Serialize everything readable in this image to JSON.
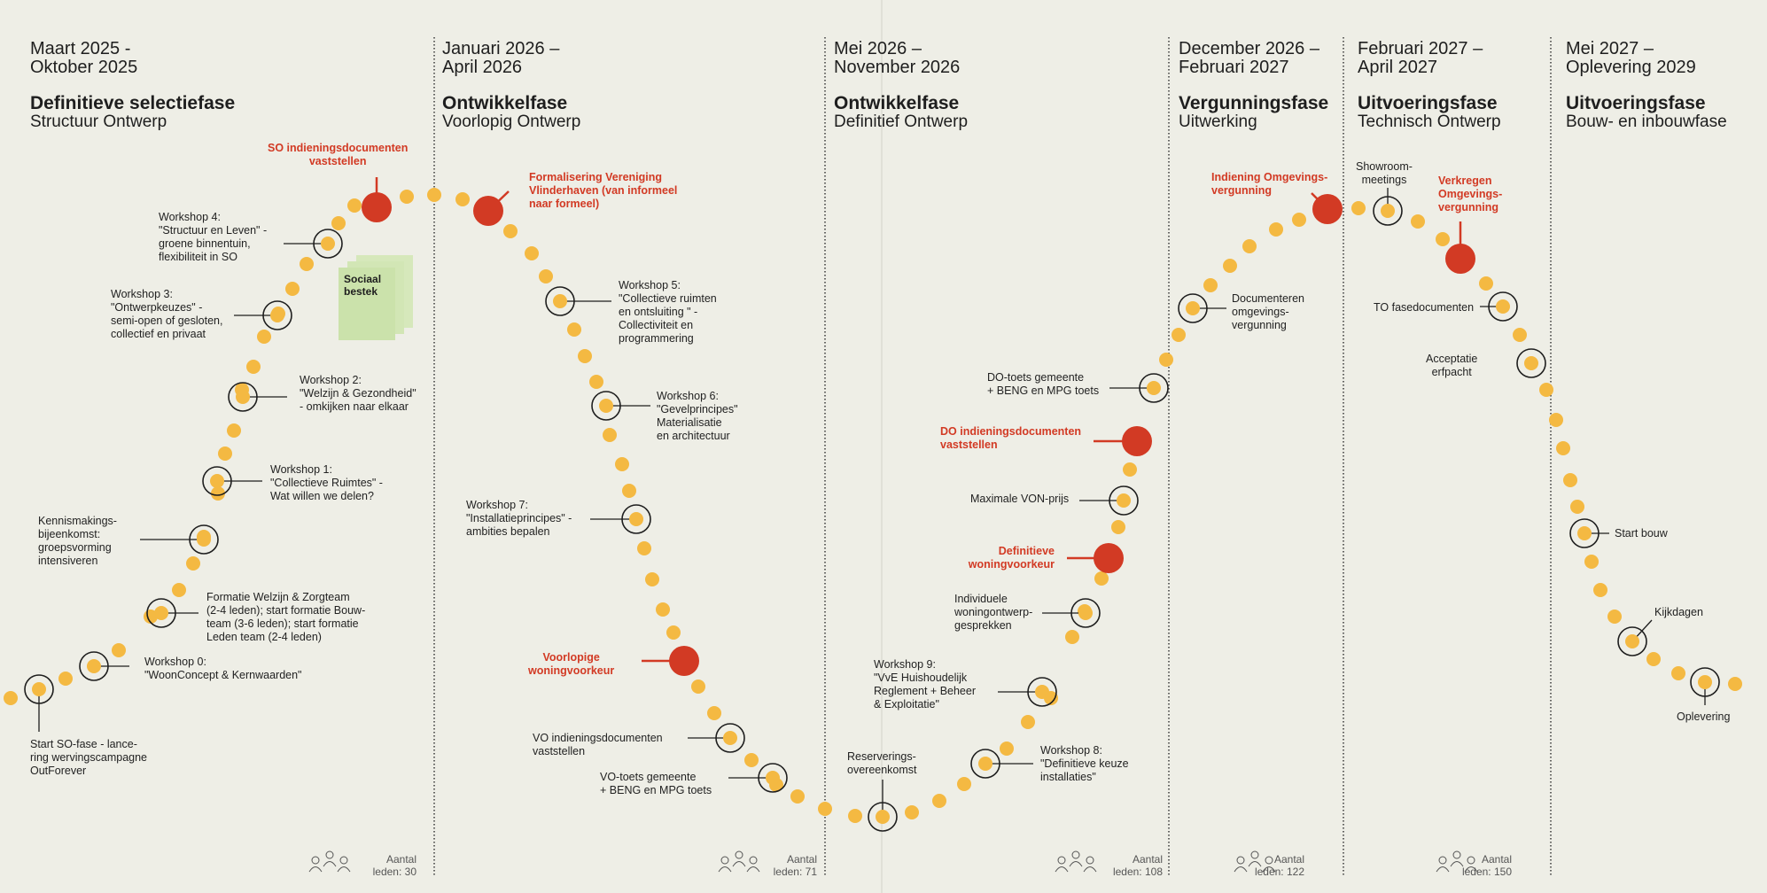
{
  "phases": [
    {
      "dates": "Maart 2025 -\nOktober 2025",
      "title": "Definitieve selectiefase",
      "subtitle": "Structuur Ontwerp",
      "members": "Aantal\nleden: 30"
    },
    {
      "dates": "Januari 2026 –\nApril 2026",
      "title": "Ontwikkelfase",
      "subtitle": "Voorlopig Ontwerp",
      "members": "Aantal\nleden: 71"
    },
    {
      "dates": "Mei 2026 –\nNovember 2026",
      "title": "Ontwikkelfase",
      "subtitle": "Definitief Ontwerp",
      "members": "Aantal\nleden: 108"
    },
    {
      "dates": "December 2026 –\nFebruari 2027",
      "title": "Vergunningsfase",
      "subtitle": "Uitwerking",
      "members": "Aantal\nleden: 122"
    },
    {
      "dates": "Februari 2027 –\nApril 2027",
      "title": "Uitvoeringsfase",
      "subtitle": "Technisch Ontwerp",
      "members": "Aantal\nleden: 150"
    },
    {
      "dates": "Mei 2027 –\nOplevering 2029",
      "title": "Uitvoeringsfase",
      "subtitle": "Bouw- en inbouwfase",
      "members": ""
    }
  ],
  "sticky_note": "Sociaal\nbestek",
  "milestones": {
    "start_so": "Start SO-fase - lance-\nring wervingscampagne\nOutForever",
    "ws0": "Workshop 0:\n\"WoonConcept & Kernwaarden\"",
    "formatie": "Formatie Welzijn & Zorgteam\n(2-4 leden); start formatie Bouw-\nteam (3-6 leden); start formatie\nLeden team (2-4 leden)",
    "kennismaking": "Kennismakings-\nbijeenkomst:\ngroepsvorming\nintensiveren",
    "ws1": "Workshop 1:\n\"Collectieve Ruimtes\" -\nWat willen we delen?",
    "ws2": "Workshop 2:\n\"Welzijn & Gezondheid\"\n- omkijken naar elkaar",
    "ws3": "Workshop 3:\n\"Ontwerpkeuzes\" -\nsemi-open of gesloten,\ncollectief en privaat",
    "ws4": "Workshop 4:\n\"Structuur en Leven\" -\ngroene binnentuin,\nflexibiliteit in SO",
    "so_docs": "SO indieningsdocumenten\nvaststellen",
    "formalisering": "Formalisering Vereniging\nVlinderhaven (van informeel\nnaar formeel)",
    "ws5": "Workshop 5:\n\"Collectieve ruimten\nen ontsluiting \" -\nCollectiviteit en\nprogrammering",
    "ws6": "Workshop 6:\n\"Gevelprincipes\"\nMaterialisatie\nen architectuur",
    "ws7": "Workshop 7:\n\"Installatieprincipes\" -\nambities bepalen",
    "vo_voorkeur": "Voorlopige\nwoningvoorkeur",
    "vo_docs": "VO indieningsdocumenten\nvaststellen",
    "vo_toets": "VO-toets gemeente\n+ BENG en MPG toets",
    "reservering": "Reserverings-\novereenkomst",
    "ws8": "Workshop 8:\n\"Definitieve keuze\ninstallaties\"",
    "ws9": "Workshop 9:\n\"VvE Huishoudelijk\nReglement + Beheer\n& Exploitatie\"",
    "gesprekken": "Individuele\nwoningontwerp-\ngesprekken",
    "def_voorkeur": "Definitieve\nwoningvoorkeur",
    "von": "Maximale VON-prijs",
    "do_docs": "DO indieningsdocumenten\nvaststellen",
    "do_toets": "DO-toets gemeente\n+ BENG en MPG toets",
    "documenteren": "Documenteren\nomgevings-\nvergunning",
    "indiening": "Indiening Omgevings-\nvergunning",
    "showroom": "Showroom-\nmeetings",
    "verkregen": "Verkregen\nOmgevings-\nvergunning",
    "to_docs": "TO fasedocumenten",
    "acceptatie": "Acceptatie\nerfpacht",
    "start_bouw": "Start bouw",
    "kijkdagen": "Kijkdagen",
    "oplevering": "Oplevering"
  },
  "colors": {
    "background": "#eeeee6",
    "dot": "#f4b942",
    "milestone_red": "#d23a24",
    "note": "#cfe4b0",
    "line": "#1e1e1e"
  }
}
